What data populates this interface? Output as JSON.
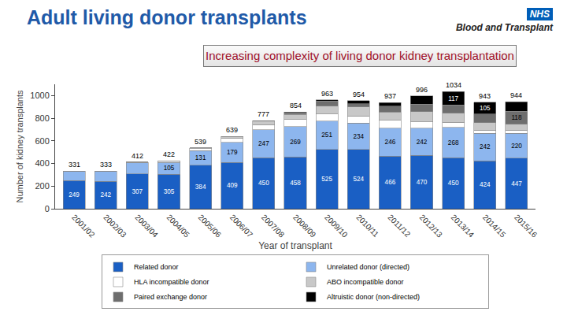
{
  "page": {
    "title": "Adult living donor transplants",
    "logo": "NHS",
    "org": "Blood and Transplant"
  },
  "chart_data": {
    "type": "bar",
    "stacked": true,
    "title": "Increasing complexity of living donor kidney transplantation",
    "x_label": "Year of transplant",
    "y_label": "Number of kidney transplants",
    "categories": [
      "2001/02",
      "2002/03",
      "2003/04",
      "2004/05",
      "2005/06",
      "2006/07",
      "2007/08",
      "2008/09",
      "2009/10",
      "2010/11",
      "2011/12",
      "2012/13",
      "2013/14",
      "2014/15",
      "2015/16"
    ],
    "series": [
      {
        "name": "Related donor",
        "color": "#1a5fc4",
        "values": [
          249,
          242,
          307,
          305,
          384,
          409,
          450,
          458,
          525,
          524,
          466,
          470,
          450,
          424,
          447
        ]
      },
      {
        "name": "Unrelated donor (directed)",
        "color": "#8db6ee",
        "values": [
          81,
          90,
          100,
          105,
          131,
          179,
          247,
          269,
          251,
          234,
          246,
          242,
          268,
          242,
          220
        ]
      },
      {
        "name": "HLA incompatible donor",
        "color": "#ffffff",
        "values": [
          1,
          1,
          3,
          8,
          16,
          38,
          47,
          61,
          60,
          61,
          68,
          57,
          45,
          30,
          26
        ]
      },
      {
        "name": "ABO incompatible donor",
        "color": "#c8c8c8",
        "values": [
          0,
          0,
          2,
          4,
          8,
          13,
          29,
          45,
          71,
          81,
          75,
          90,
          82,
          65,
          52
        ]
      },
      {
        "name": "Paired exchange donor",
        "color": "#6e6e6e",
        "values": [
          0,
          0,
          0,
          0,
          0,
          0,
          2,
          15,
          45,
          29,
          51,
          65,
          72,
          77,
          118
        ]
      },
      {
        "name": "Altruistic donor (non-directed)",
        "color": "#000000",
        "values": [
          0,
          0,
          0,
          0,
          0,
          0,
          2,
          6,
          11,
          25,
          31,
          72,
          117,
          105,
          81
        ]
      }
    ],
    "totals": [
      331,
      333,
      412,
      422,
      539,
      639,
      777,
      854,
      963,
      954,
      937,
      996,
      1034,
      943,
      944
    ],
    "ylim": [
      0,
      1100
    ],
    "yticks": [
      0,
      200,
      400,
      600,
      800,
      1000
    ],
    "grid": false,
    "legend": "bottom",
    "data_labels": true
  }
}
